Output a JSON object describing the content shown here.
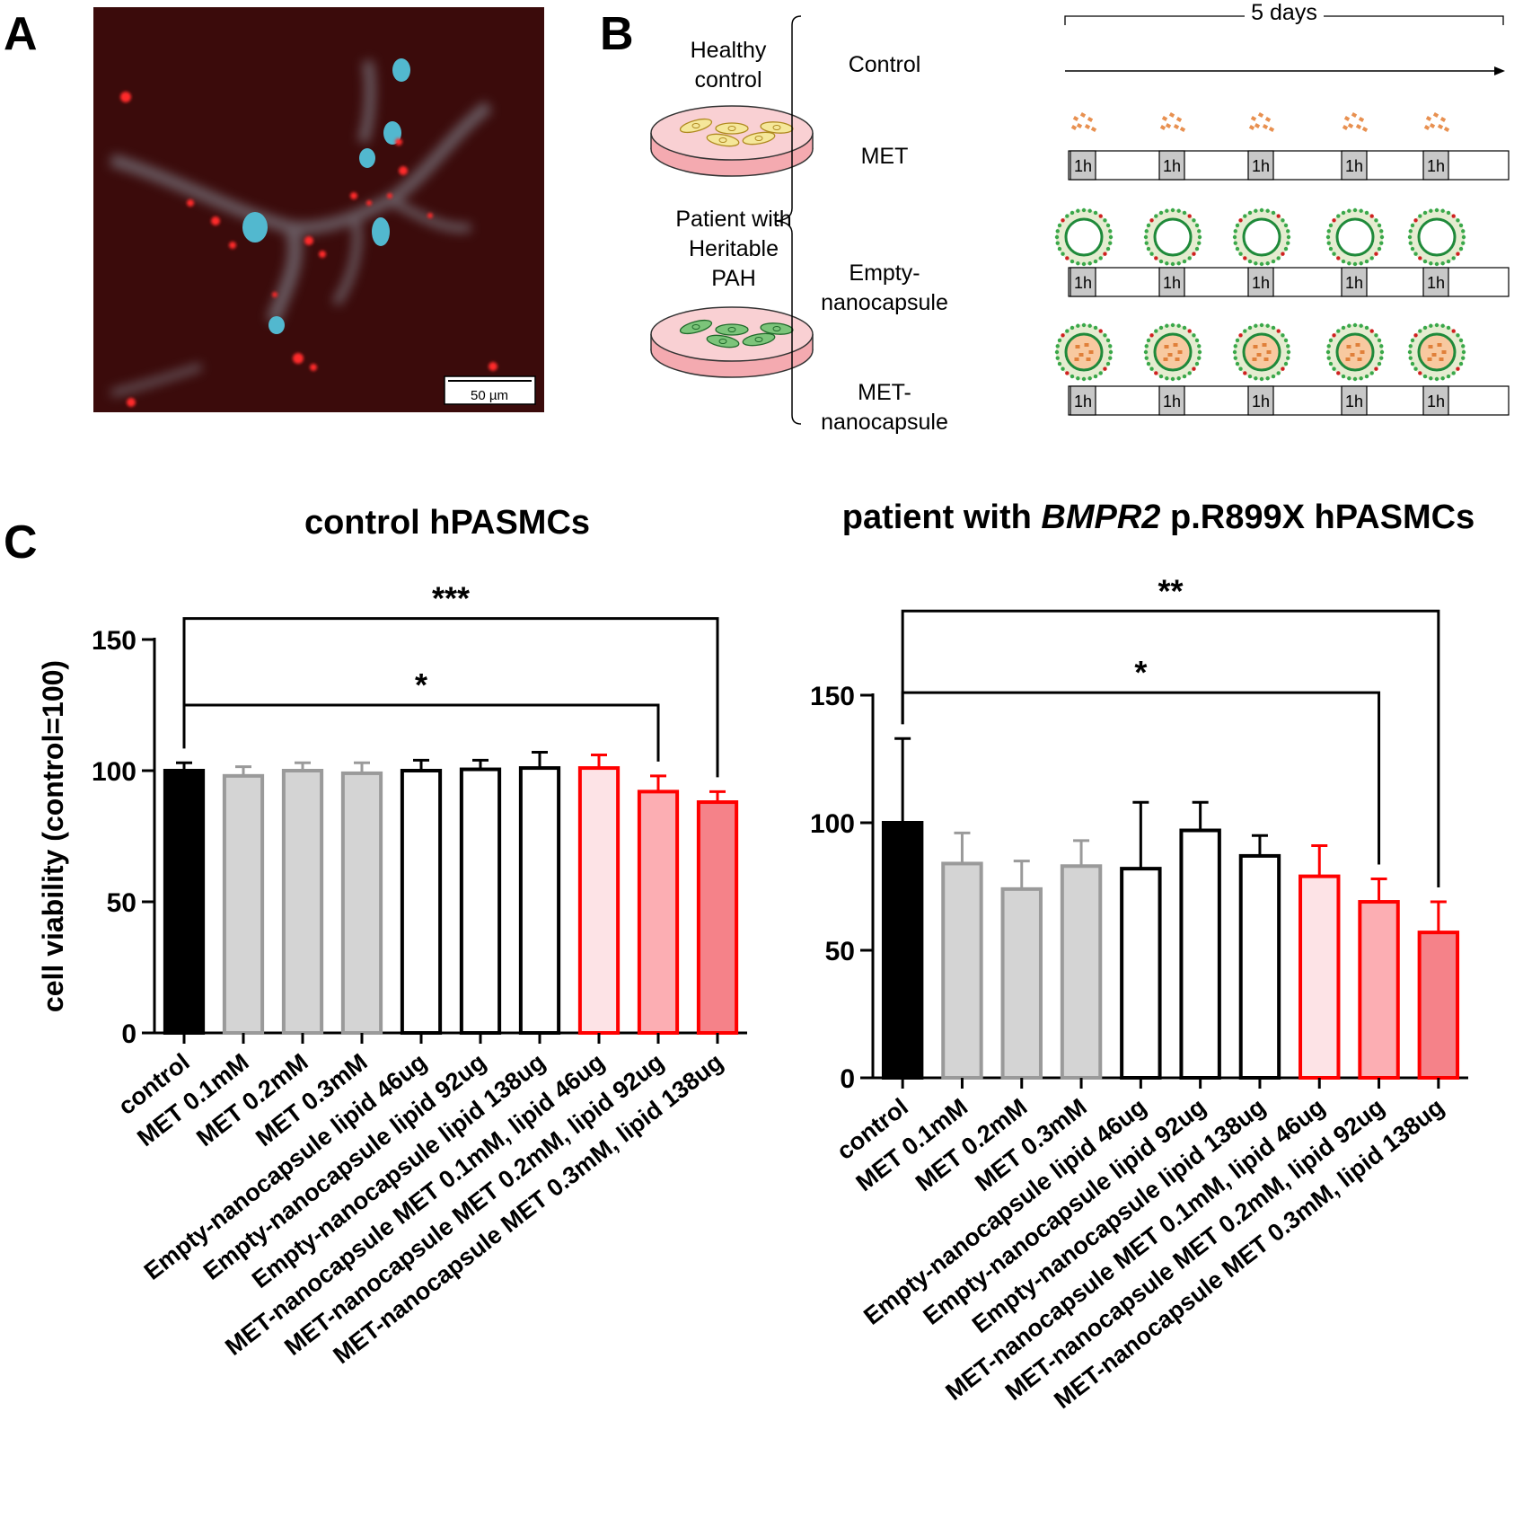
{
  "panels": {
    "a": "A",
    "b": "B",
    "c": "C"
  },
  "micrograph": {
    "scale_bar_label": "50 µm"
  },
  "schematic": {
    "duration_label": "5 days",
    "dish_labels": [
      [
        "Healthy",
        "control"
      ],
      [
        "Patient with",
        "Heritable",
        "PAH"
      ]
    ],
    "conditions": [
      [
        "Control"
      ],
      [
        "MET"
      ],
      [
        "Empty-",
        "nanocapsule"
      ],
      [
        "MET-",
        "nanocapsule"
      ]
    ],
    "pulse_label": "1h"
  },
  "colors": {
    "control": "#000000",
    "met_free": "#d4d4d4",
    "met_free_edge": "#9a9a9a",
    "empty_capsule": "#ffffff",
    "met_capsule_light": "#fde3e6",
    "met_capsule_mid": "#fcaeb3",
    "met_capsule_dark": "#f58289",
    "red_edge": "#ff0000",
    "micro_bg": "#3b0b0b",
    "nucleus": "#52b8cf",
    "puncta": "#ff2a2a"
  },
  "chart_data": [
    {
      "type": "bar",
      "title": "control hPASMCs",
      "ylabel": "cell viability (control=100)",
      "ylim": [
        0,
        150
      ],
      "yticks": [
        0,
        50,
        100,
        150
      ],
      "categories": [
        "control",
        "MET 0.1mM",
        "MET 0.2mM",
        "MET 0.3mM",
        "Empty-nanocapsule lipid 46ug",
        "Empty-nanocapsule lipid 92ug",
        "Empty-nanocapsule lipid 138ug",
        "MET-nanocapsule MET 0.1mM, lipid 46ug",
        "MET-nanocapsule MET 0.2mM, lipid 92ug",
        "MET-nanocapsule MET 0.3mM, lipid 138ug"
      ],
      "values": [
        100,
        98,
        100,
        99,
        100,
        100.5,
        101,
        101,
        92,
        88
      ],
      "errors": [
        3,
        3.5,
        3,
        4,
        4,
        3.5,
        6,
        5,
        6,
        4
      ],
      "significance": [
        {
          "label": "***",
          "from": 0,
          "to": 9,
          "level": 158
        },
        {
          "label": "*",
          "from": 0,
          "to": 8,
          "level": 125
        }
      ]
    },
    {
      "type": "bar",
      "title_parts": [
        "patient with ",
        "BMPR2",
        " p.R899X hPASMCs"
      ],
      "ylabel": "",
      "ylim": [
        0,
        150
      ],
      "yticks": [
        0,
        50,
        100,
        150
      ],
      "categories": [
        "control",
        "MET 0.1mM",
        "MET 0.2mM",
        "MET 0.3mM",
        "Empty-nanocapsule lipid 46ug",
        "Empty-nanocapsule lipid 92ug",
        "Empty-nanocapsule lipid 138ug",
        "MET-nanocapsule MET 0.1mM, lipid 46ug",
        "MET-nanocapsule MET 0.2mM, lipid 92ug",
        "MET-nanocapsule MET 0.3mM, lipid 138ug"
      ],
      "values": [
        100,
        84,
        74,
        83,
        82,
        97,
        87,
        79,
        69,
        57
      ],
      "errors": [
        33,
        12,
        11,
        10,
        26,
        11,
        8,
        12,
        9,
        12
      ],
      "significance": [
        {
          "label": "**",
          "from": 0,
          "to": 9,
          "level": 183
        },
        {
          "label": "*",
          "from": 0,
          "to": 8,
          "level": 151
        }
      ]
    }
  ]
}
